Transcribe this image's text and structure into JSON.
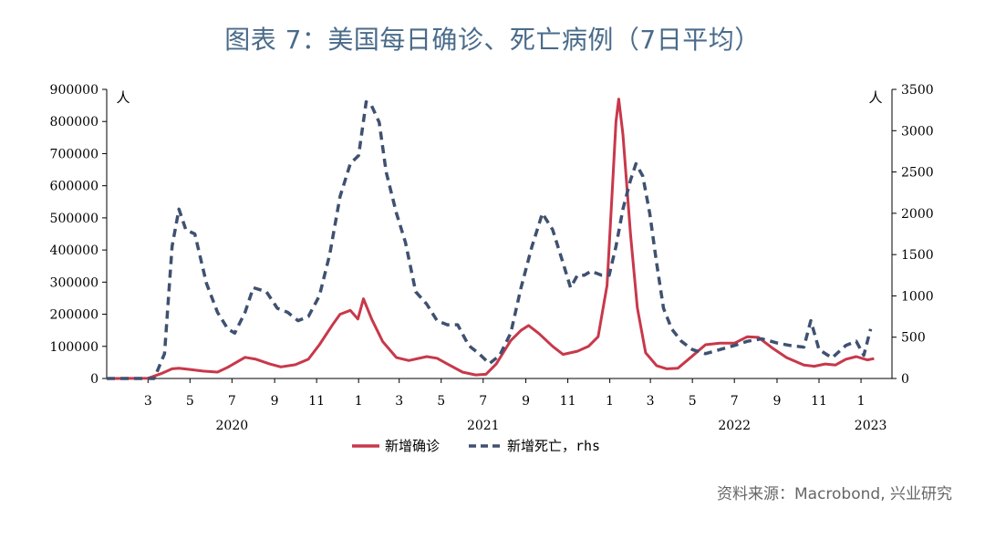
{
  "title": "图表 7：美国每日确诊、死亡病例（7日平均）",
  "source": "资料来源：Macrobond, 兴业研究",
  "chart_data": {
    "type": "line",
    "left_unit": "人",
    "right_unit": "人",
    "y_left": {
      "lim": [
        0,
        900000
      ],
      "ticks": [
        0,
        100000,
        200000,
        300000,
        400000,
        500000,
        600000,
        700000,
        800000,
        900000
      ],
      "tick_labels": [
        "0",
        "100000",
        "200000",
        "300000",
        "400000",
        "500000",
        "600000",
        "700000",
        "800000",
        "900000"
      ]
    },
    "y_right": {
      "lim": [
        0,
        3500
      ],
      "ticks": [
        0,
        500,
        1000,
        1500,
        2000,
        2500,
        3000,
        3500
      ],
      "tick_labels": [
        "0",
        "500",
        "1000",
        "1500",
        "2000",
        "2500",
        "3000",
        "3500"
      ]
    },
    "x": {
      "range": [
        "2020-01-01",
        "2023-02-15"
      ],
      "month_ticks": [
        {
          "date": "2020-03-01",
          "label": "3"
        },
        {
          "date": "2020-05-01",
          "label": "5"
        },
        {
          "date": "2020-07-01",
          "label": "7"
        },
        {
          "date": "2020-09-01",
          "label": "9"
        },
        {
          "date": "2020-11-01",
          "label": "11"
        },
        {
          "date": "2021-01-01",
          "label": "1"
        },
        {
          "date": "2021-03-01",
          "label": "3"
        },
        {
          "date": "2021-05-01",
          "label": "5"
        },
        {
          "date": "2021-07-01",
          "label": "7"
        },
        {
          "date": "2021-09-01",
          "label": "9"
        },
        {
          "date": "2021-11-01",
          "label": "11"
        },
        {
          "date": "2022-01-01",
          "label": "1"
        },
        {
          "date": "2022-03-01",
          "label": "3"
        },
        {
          "date": "2022-05-01",
          "label": "5"
        },
        {
          "date": "2022-07-01",
          "label": "7"
        },
        {
          "date": "2022-09-01",
          "label": "9"
        },
        {
          "date": "2022-11-01",
          "label": "11"
        },
        {
          "date": "2023-01-01",
          "label": "1"
        }
      ],
      "year_labels": [
        {
          "date": "2020-07-01",
          "label": "2020"
        },
        {
          "date": "2021-07-01",
          "label": "2021"
        },
        {
          "date": "2022-07-01",
          "label": "2022"
        },
        {
          "date": "2023-01-15",
          "label": "2023"
        }
      ]
    },
    "series": [
      {
        "name": "新增确诊",
        "axis": "left",
        "color": "#c8384a",
        "style": "solid",
        "points": [
          [
            "2020-01-01",
            0
          ],
          [
            "2020-03-01",
            500
          ],
          [
            "2020-03-20",
            15000
          ],
          [
            "2020-04-05",
            30000
          ],
          [
            "2020-04-15",
            32000
          ],
          [
            "2020-05-01",
            28000
          ],
          [
            "2020-05-20",
            23000
          ],
          [
            "2020-06-10",
            20000
          ],
          [
            "2020-06-25",
            35000
          ],
          [
            "2020-07-20",
            66000
          ],
          [
            "2020-08-05",
            60000
          ],
          [
            "2020-08-25",
            45000
          ],
          [
            "2020-09-10",
            36000
          ],
          [
            "2020-10-01",
            43000
          ],
          [
            "2020-10-20",
            60000
          ],
          [
            "2020-11-05",
            105000
          ],
          [
            "2020-11-25",
            170000
          ],
          [
            "2020-12-05",
            200000
          ],
          [
            "2020-12-20",
            212000
          ],
          [
            "2020-12-31",
            185000
          ],
          [
            "2021-01-08",
            248000
          ],
          [
            "2021-01-20",
            185000
          ],
          [
            "2021-02-05",
            115000
          ],
          [
            "2021-02-25",
            65000
          ],
          [
            "2021-03-15",
            56000
          ],
          [
            "2021-04-10",
            68000
          ],
          [
            "2021-04-25",
            63000
          ],
          [
            "2021-05-10",
            45000
          ],
          [
            "2021-06-01",
            20000
          ],
          [
            "2021-06-20",
            11000
          ],
          [
            "2021-07-05",
            13000
          ],
          [
            "2021-07-20",
            45000
          ],
          [
            "2021-08-10",
            118000
          ],
          [
            "2021-08-25",
            150000
          ],
          [
            "2021-09-05",
            165000
          ],
          [
            "2021-09-20",
            140000
          ],
          [
            "2021-10-10",
            100000
          ],
          [
            "2021-10-25",
            75000
          ],
          [
            "2021-11-15",
            85000
          ],
          [
            "2021-12-01",
            100000
          ],
          [
            "2021-12-15",
            130000
          ],
          [
            "2021-12-28",
            290000
          ],
          [
            "2022-01-05",
            600000
          ],
          [
            "2022-01-10",
            800000
          ],
          [
            "2022-01-14",
            870000
          ],
          [
            "2022-01-20",
            760000
          ],
          [
            "2022-01-31",
            450000
          ],
          [
            "2022-02-10",
            220000
          ],
          [
            "2022-02-22",
            80000
          ],
          [
            "2022-03-10",
            40000
          ],
          [
            "2022-03-25",
            30000
          ],
          [
            "2022-04-10",
            32000
          ],
          [
            "2022-05-01",
            70000
          ],
          [
            "2022-05-20",
            105000
          ],
          [
            "2022-06-10",
            110000
          ],
          [
            "2022-07-01",
            110000
          ],
          [
            "2022-07-20",
            130000
          ],
          [
            "2022-08-05",
            128000
          ],
          [
            "2022-08-25",
            95000
          ],
          [
            "2022-09-15",
            65000
          ],
          [
            "2022-10-10",
            42000
          ],
          [
            "2022-10-25",
            38000
          ],
          [
            "2022-11-10",
            45000
          ],
          [
            "2022-11-25",
            42000
          ],
          [
            "2022-12-10",
            60000
          ],
          [
            "2022-12-25",
            68000
          ],
          [
            "2023-01-10",
            58000
          ],
          [
            "2023-01-20",
            62000
          ]
        ]
      },
      {
        "name": "新增死亡，rhs",
        "axis": "right",
        "color": "#3f5170",
        "style": "dashed",
        "points": [
          [
            "2020-01-01",
            0
          ],
          [
            "2020-03-10",
            0
          ],
          [
            "2020-03-25",
            300
          ],
          [
            "2020-04-05",
            1600
          ],
          [
            "2020-04-15",
            2050
          ],
          [
            "2020-04-25",
            1800
          ],
          [
            "2020-05-08",
            1750
          ],
          [
            "2020-05-25",
            1150
          ],
          [
            "2020-06-10",
            800
          ],
          [
            "2020-06-25",
            600
          ],
          [
            "2020-07-05",
            550
          ],
          [
            "2020-07-20",
            800
          ],
          [
            "2020-08-01",
            1100
          ],
          [
            "2020-08-20",
            1050
          ],
          [
            "2020-09-05",
            850
          ],
          [
            "2020-09-20",
            800
          ],
          [
            "2020-10-05",
            700
          ],
          [
            "2020-10-20",
            750
          ],
          [
            "2020-11-05",
            1000
          ],
          [
            "2020-11-20",
            1500
          ],
          [
            "2020-12-05",
            2200
          ],
          [
            "2020-12-20",
            2600
          ],
          [
            "2021-01-01",
            2700
          ],
          [
            "2021-01-12",
            3350
          ],
          [
            "2021-01-20",
            3300
          ],
          [
            "2021-01-31",
            3100
          ],
          [
            "2021-02-10",
            2500
          ],
          [
            "2021-02-25",
            2000
          ],
          [
            "2021-03-10",
            1650
          ],
          [
            "2021-03-25",
            1050
          ],
          [
            "2021-04-10",
            900
          ],
          [
            "2021-04-25",
            700
          ],
          [
            "2021-05-10",
            650
          ],
          [
            "2021-05-25",
            650
          ],
          [
            "2021-06-10",
            400
          ],
          [
            "2021-06-25",
            300
          ],
          [
            "2021-07-10",
            180
          ],
          [
            "2021-07-25",
            280
          ],
          [
            "2021-08-10",
            550
          ],
          [
            "2021-08-25",
            1100
          ],
          [
            "2021-09-10",
            1600
          ],
          [
            "2021-09-25",
            2000
          ],
          [
            "2021-10-10",
            1800
          ],
          [
            "2021-10-25",
            1400
          ],
          [
            "2021-11-05",
            1100
          ],
          [
            "2021-11-15",
            1250
          ],
          [
            "2021-11-25",
            1250
          ],
          [
            "2021-12-05",
            1300
          ],
          [
            "2021-12-20",
            1250
          ],
          [
            "2021-12-31",
            1250
          ],
          [
            "2022-01-10",
            1600
          ],
          [
            "2022-01-20",
            2050
          ],
          [
            "2022-01-31",
            2400
          ],
          [
            "2022-02-08",
            2600
          ],
          [
            "2022-02-18",
            2450
          ],
          [
            "2022-02-28",
            2000
          ],
          [
            "2022-03-10",
            1400
          ],
          [
            "2022-03-20",
            850
          ],
          [
            "2022-04-01",
            600
          ],
          [
            "2022-04-15",
            450
          ],
          [
            "2022-05-01",
            350
          ],
          [
            "2022-05-20",
            300
          ],
          [
            "2022-06-10",
            350
          ],
          [
            "2022-07-01",
            400
          ],
          [
            "2022-07-20",
            450
          ],
          [
            "2022-08-10",
            480
          ],
          [
            "2022-09-01",
            430
          ],
          [
            "2022-09-20",
            400
          ],
          [
            "2022-10-10",
            380
          ],
          [
            "2022-10-20",
            700
          ],
          [
            "2022-11-01",
            350
          ],
          [
            "2022-11-20",
            250
          ],
          [
            "2022-12-10",
            400
          ],
          [
            "2022-12-25",
            450
          ],
          [
            "2023-01-05",
            280
          ],
          [
            "2023-01-15",
            600
          ]
        ]
      }
    ],
    "legend": {
      "placement": "bottom-center"
    }
  }
}
